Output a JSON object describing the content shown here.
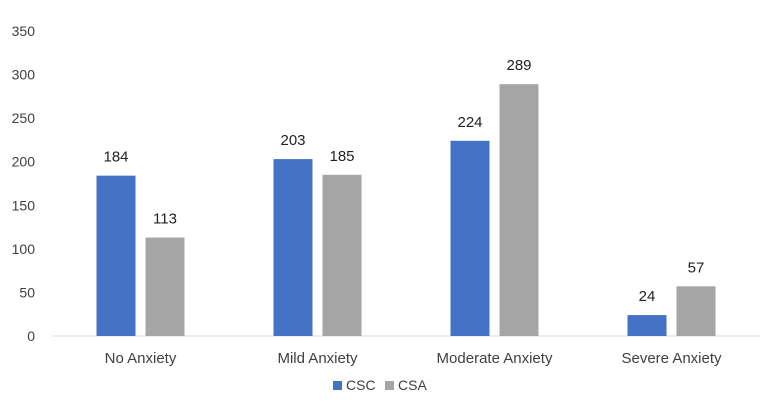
{
  "chart_data": {
    "type": "bar",
    "title": "",
    "xlabel": "",
    "ylabel": "",
    "categories": [
      "No Anxiety",
      "Mild Anxiety",
      "Moderate Anxiety",
      "Severe Anxiety"
    ],
    "series": [
      {
        "name": "CSC",
        "values": [
          184,
          203,
          224,
          24
        ],
        "color": "#4472C4"
      },
      {
        "name": "CSA",
        "values": [
          113,
          185,
          289,
          57
        ],
        "color": "#A5A5A5"
      }
    ],
    "ylim": [
      0,
      350
    ],
    "yticks": [
      0,
      50,
      100,
      150,
      200,
      250,
      300,
      350
    ],
    "grid": false,
    "legend_position": "bottom"
  }
}
